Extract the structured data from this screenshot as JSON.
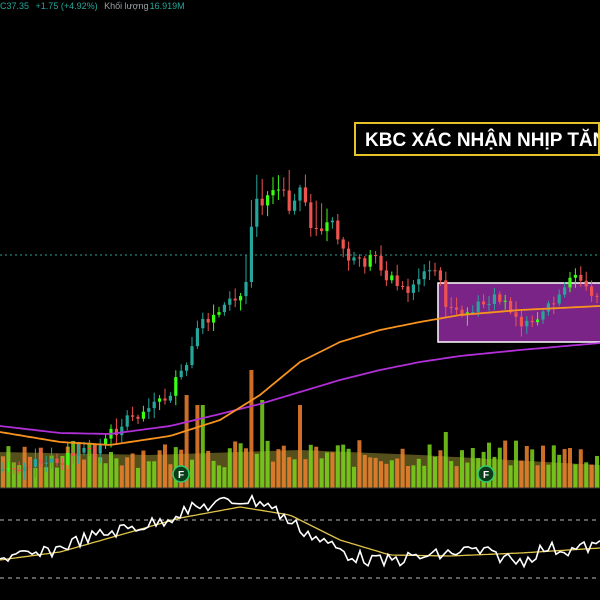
{
  "header": {
    "close": "C37.35",
    "change": "+1.75 (+4.92%)",
    "volume_label": "Khối lượng",
    "volume_value": "16.919M"
  },
  "banner": {
    "text": "KBC XÁC NHẬN NHỊP TĂNG"
  },
  "markers": [
    {
      "label": "F"
    },
    {
      "label": "F"
    }
  ],
  "colors": {
    "up": "#26a69a",
    "up_bright": "#39ff14",
    "down": "#ef5350",
    "volume_up": "#7ad31c",
    "volume_down": "#f0812e",
    "ma_fast": "#f7931e",
    "ma_slow": "#b02fd6",
    "zone_fill": "#8e2a9e",
    "rsi": "#ffffff",
    "rsi_ma": "#e0c34a",
    "banner_border": "#e6c229"
  },
  "chart_data": {
    "type": "candlestick",
    "title": "",
    "ylim": [
      20,
      45
    ],
    "close_last": 37.35,
    "support_line": 40.5,
    "zone": {
      "top": 38.6,
      "bottom": 35.1
    },
    "rsi_levels": [
      70,
      30
    ]
  }
}
